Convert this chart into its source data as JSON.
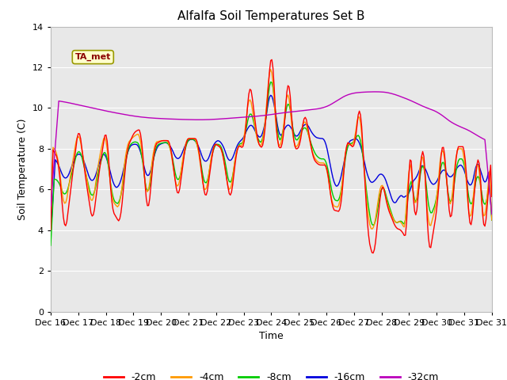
{
  "title": "Alfalfa Soil Temperatures Set B",
  "xlabel": "Time",
  "ylabel": "Soil Temperature (C)",
  "ylim": [
    0,
    14
  ],
  "yticks": [
    0,
    2,
    4,
    6,
    8,
    10,
    12,
    14
  ],
  "colors": {
    "-2cm": "#ff0000",
    "-4cm": "#ff9900",
    "-8cm": "#00cc00",
    "-16cm": "#0000dd",
    "-32cm": "#bb00bb"
  },
  "x_tick_labels": [
    "Dec 16",
    "Dec 17",
    "Dec 18",
    "Dec 19",
    "Dec 20",
    "Dec 21",
    "Dec 22",
    "Dec 23",
    "Dec 24",
    "Dec 25",
    "Dec 26",
    "Dec 27",
    "Dec 28",
    "Dec 29",
    "Dec 30",
    "Dec 31"
  ],
  "annotation_text": "TA_met",
  "n_days": 16,
  "n_pts": 384
}
